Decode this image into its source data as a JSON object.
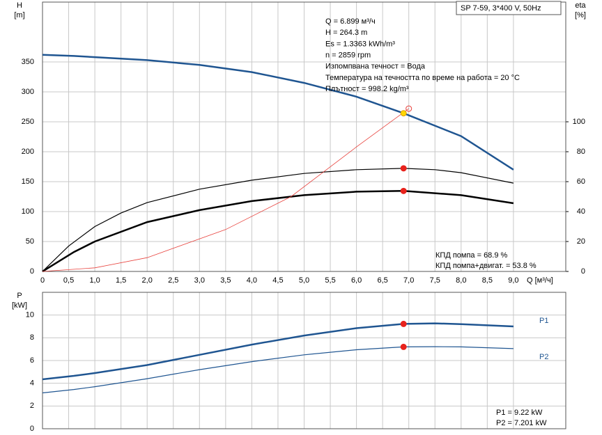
{
  "chart_data": [
    {
      "type": "line",
      "ylabel": "H",
      "yunit": "[m]",
      "y2label": "eta",
      "y2unit": "[%]",
      "xlabel": "Q [м³/ч]",
      "model": "SP 7-59, 3*400 V, 50Hz",
      "annotations": [
        "Q = 6.899 м³/ч",
        "H = 264.3 m",
        "Es = 1.3363 kWh/m³",
        "n = 2859 rpm",
        "Изпомпвана течност = Вода",
        "Температура на течността по време на работа = 20 °C",
        "Плътност = 998.2 kg/m³"
      ],
      "notes": [
        "КПД помпа = 68.9 %",
        "КПД помпа+двигат. = 53.8 %"
      ],
      "xlim": [
        0,
        10
      ],
      "xticks": [
        0,
        {
          "value": 0.5,
          "label": "0,5"
        },
        {
          "value": 1,
          "label": "1,0"
        },
        {
          "value": 1.5,
          "label": "1,5"
        },
        {
          "value": 2,
          "label": "2,0"
        },
        {
          "value": 2.5,
          "label": "2,5"
        },
        {
          "value": 3,
          "label": "3,0"
        },
        {
          "value": 3.5,
          "label": "3,5"
        },
        {
          "value": 4,
          "label": "4,0"
        },
        {
          "value": 4.5,
          "label": "4,5"
        },
        {
          "value": 5,
          "label": "5,0"
        },
        {
          "value": 5.5,
          "label": "5,5"
        },
        {
          "value": 6,
          "label": "6,0"
        },
        {
          "value": 6.5,
          "label": "6,5"
        },
        {
          "value": 7,
          "label": "7,0"
        },
        {
          "value": 7.5,
          "label": "7,5"
        },
        {
          "value": 8,
          "label": "8,0"
        },
        {
          "value": 8.5,
          "label": "8,5"
        },
        {
          "value": 9,
          "label": "9,0"
        }
      ],
      "xtick_labels": true,
      "ylim": [
        0,
        450
      ],
      "yticks": [
        0,
        50,
        100,
        150,
        200,
        250,
        300,
        350
      ],
      "y2lim": [
        0,
        180
      ],
      "y2ticks": [
        0,
        20,
        40,
        60,
        80,
        100
      ],
      "grid": true,
      "series": [
        {
          "color": "#1f5591",
          "width": 2.5,
          "x": [
            0,
            0.6,
            1,
            2,
            3,
            4,
            5,
            6,
            6.9,
            8,
            9
          ],
          "values": [
            362,
            360,
            358,
            353,
            345,
            333,
            315,
            292,
            264.3,
            226,
            170
          ]
        },
        {
          "color": "#000000",
          "width": 1.2,
          "axis": "y2",
          "x": [
            0,
            0.5,
            1,
            1.5,
            2,
            3,
            4,
            5,
            6,
            6.9,
            7.5,
            8,
            9
          ],
          "values": [
            0,
            17,
            30,
            39,
            46,
            55,
            61,
            65.5,
            68,
            68.9,
            68,
            66,
            59
          ]
        },
        {
          "color": "#000000",
          "width": 2.5,
          "axis": "y2",
          "x": [
            0,
            0.6,
            1,
            2,
            3,
            4,
            5,
            6,
            6.9,
            8,
            9
          ],
          "values": [
            0,
            13,
            20,
            33,
            41,
            47,
            51,
            53.3,
            53.8,
            51,
            45.6
          ]
        },
        {
          "color": "#e8413c",
          "width": 0.8,
          "x": [
            0,
            1,
            2,
            3.5,
            4.75,
            6,
            7
          ],
          "values": [
            0,
            6,
            23,
            70,
            125,
            208,
            272
          ]
        }
      ],
      "points": [
        {
          "x": 6.9,
          "y": 264.3,
          "color": "#ffd700"
        },
        {
          "x": 6.9,
          "y": 68.9,
          "axis": "y2",
          "color": "#e8221c"
        },
        {
          "x": 6.9,
          "y": 53.8,
          "axis": "y2",
          "color": "#e8221c"
        },
        {
          "x": 7,
          "y": 272,
          "color": "none"
        }
      ]
    },
    {
      "type": "line",
      "ylabel": "P",
      "yunit": "[kW]",
      "notes": [
        "P1 = 9.22 kW",
        "P2 = 7.201 kW"
      ],
      "xlim": [
        0,
        10
      ],
      "xticks": [
        0,
        0.5,
        1,
        1.5,
        2,
        2.5,
        3,
        3.5,
        4,
        4.5,
        5,
        5.5,
        6,
        6.5,
        7,
        7.5,
        8,
        8.5,
        9
      ],
      "xtick_labels": false,
      "ylim": [
        0,
        12
      ],
      "yticks": [
        0,
        2,
        4,
        6,
        8,
        10
      ],
      "grid": true,
      "series": [
        {
          "name": "P1",
          "color": "#1f5591",
          "width": 2.5,
          "x": [
            0,
            0.6,
            1,
            2,
            3,
            4,
            5,
            6,
            6.9,
            7.5,
            8,
            9
          ],
          "values": [
            4.35,
            4.65,
            4.9,
            5.6,
            6.5,
            7.4,
            8.2,
            8.85,
            9.22,
            9.27,
            9.2,
            9.0
          ]
        },
        {
          "name": "P2",
          "color": "#1f5591",
          "width": 1.2,
          "x": [
            0,
            0.6,
            1,
            2,
            3,
            4,
            5,
            6,
            6.9,
            7.5,
            8,
            9
          ],
          "values": [
            3.15,
            3.45,
            3.7,
            4.4,
            5.2,
            5.9,
            6.5,
            6.95,
            7.201,
            7.22,
            7.2,
            7.05
          ]
        }
      ],
      "points": [
        {
          "x": 6.9,
          "y": 9.22,
          "color": "#e8221c"
        },
        {
          "x": 6.9,
          "y": 7.201,
          "color": "#e8221c"
        }
      ]
    }
  ]
}
